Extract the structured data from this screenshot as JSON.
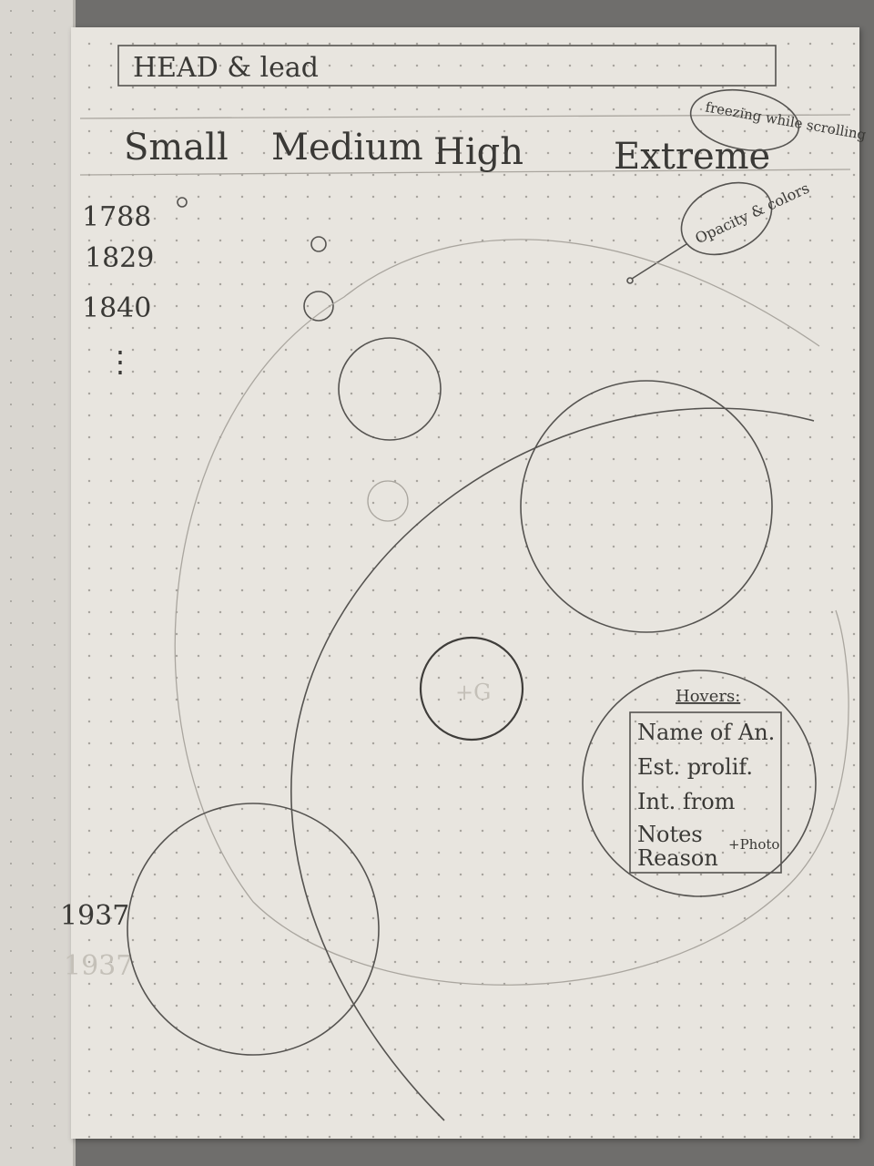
{
  "header": {
    "label": "HEAD & lead"
  },
  "scale": {
    "levels": [
      "Small",
      "Medium",
      "High",
      "Extreme"
    ],
    "note": "freezing while scrolling"
  },
  "timeline": {
    "years": [
      "1788",
      "1829",
      "1840",
      "1937"
    ],
    "faint_years": [
      "1937"
    ],
    "ellipsis": "⋮"
  },
  "annotations": {
    "opacity_note": "Opacity & colors",
    "bubble_label": "+G"
  },
  "hover_card": {
    "title": "Hovers:",
    "lines": [
      "Name of An.",
      "Est. prolif.",
      "Int. from",
      "Notes",
      "Reason"
    ],
    "extra": "+Photo"
  }
}
